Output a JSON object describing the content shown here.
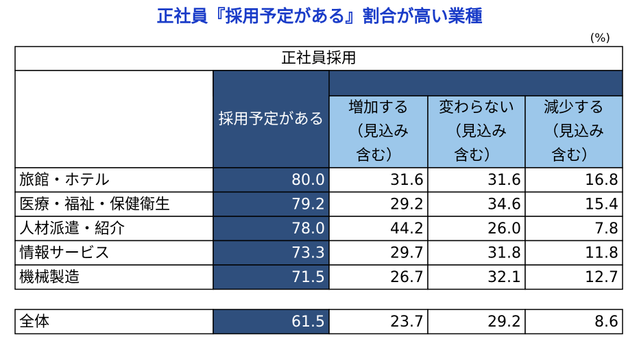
{
  "title": "正社員『採用予定がある』割合が高い業種",
  "unit": "(%)",
  "table": {
    "group_header": "正社員採用",
    "columns": [
      [
        "採用予定がある"
      ],
      [
        "増加する",
        "（見込み",
        "含む）"
      ],
      [
        "変わらない",
        "（見込み",
        "含む）"
      ],
      [
        "減少する",
        "（見込み",
        "含む）"
      ]
    ],
    "rows": [
      [
        "旅館・ホテル",
        "80.0",
        "31.6",
        "31.6",
        "16.8"
      ],
      [
        "医療・福祉・保健衛生",
        "79.2",
        "29.2",
        "34.6",
        "15.4"
      ],
      [
        "人材派遣・紹介",
        "78.0",
        "44.2",
        "26.0",
        "7.8"
      ],
      [
        "情報サービス",
        "73.3",
        "29.7",
        "31.8",
        "11.8"
      ],
      [
        "機械製造",
        "71.5",
        "26.7",
        "32.1",
        "12.7"
      ]
    ],
    "total": [
      "全体",
      "61.5",
      "23.7",
      "29.2",
      "8.6"
    ]
  }
}
